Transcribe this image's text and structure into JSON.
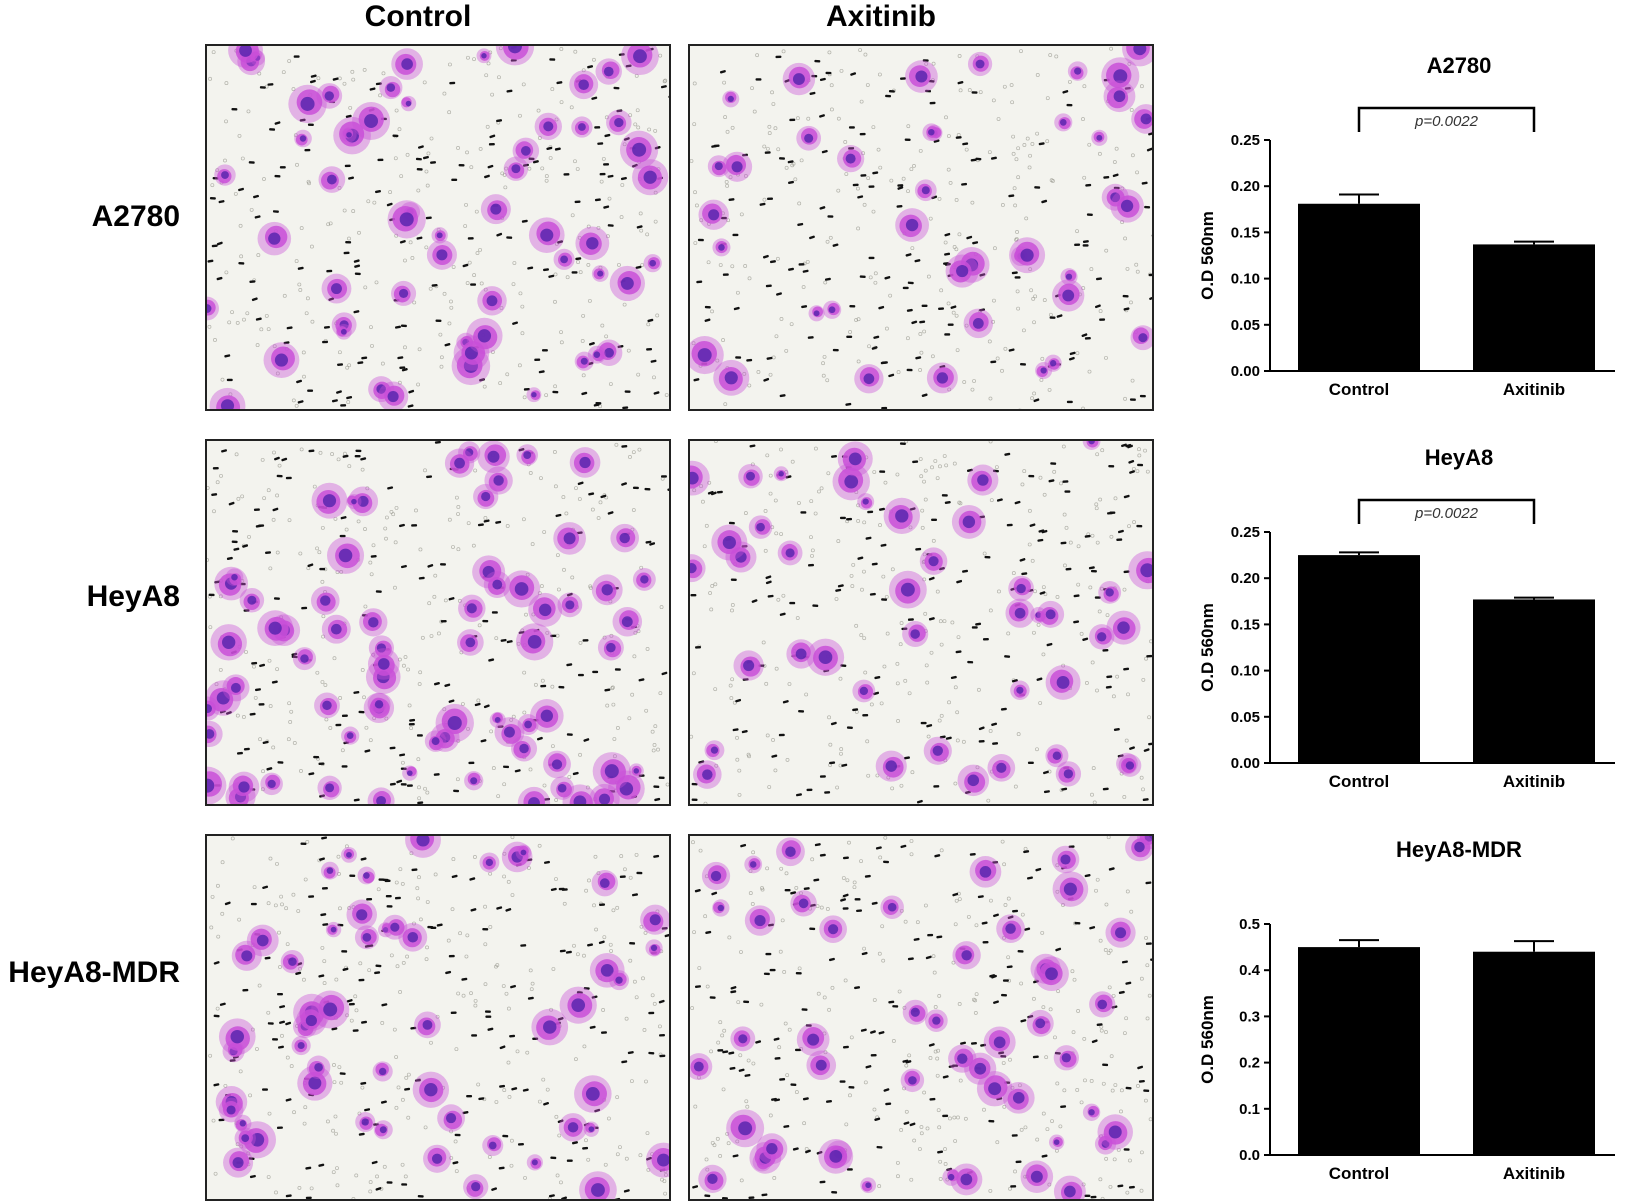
{
  "column_headers": [
    "Control",
    "Axitinib"
  ],
  "row_labels": [
    "A2780",
    "HeyA8",
    "HeyA8-MDR"
  ],
  "micrograph_colors": {
    "background": "#f3f3ee",
    "stain_light": "#c94fd8",
    "stain_dark": "#4a1fa8",
    "pore": "#111111"
  },
  "chart_data": [
    {
      "type": "bar",
      "title": "A2780",
      "categories": [
        "Control",
        "Axitinib"
      ],
      "values": [
        0.181,
        0.137
      ],
      "errors": [
        0.01,
        0.003
      ],
      "ylabel": "O.D 560nm",
      "ylim": [
        0,
        0.25
      ],
      "yticks": [
        "0.00",
        "0.05",
        "0.10",
        "0.15",
        "0.20",
        "0.25"
      ],
      "significance": "p=0.0022",
      "bar_color": "#000000"
    },
    {
      "type": "bar",
      "title": "HeyA8",
      "categories": [
        "Control",
        "Axitinib"
      ],
      "values": [
        0.225,
        0.177
      ],
      "errors": [
        0.003,
        0.002
      ],
      "ylabel": "O.D 560nm",
      "ylim": [
        0,
        0.25
      ],
      "yticks": [
        "0.00",
        "0.05",
        "0.10",
        "0.15",
        "0.20",
        "0.25"
      ],
      "significance": "p=0.0022",
      "bar_color": "#000000"
    },
    {
      "type": "bar",
      "title": "HeyA8-MDR",
      "categories": [
        "Control",
        "Axitinib"
      ],
      "values": [
        0.45,
        0.44
      ],
      "errors": [
        0.015,
        0.023
      ],
      "ylabel": "O.D 560nm",
      "ylim": [
        0,
        0.5
      ],
      "yticks": [
        "0.0",
        "0.1",
        "0.2",
        "0.3",
        "0.4",
        "0.5"
      ],
      "significance": "",
      "bar_color": "#000000"
    }
  ]
}
